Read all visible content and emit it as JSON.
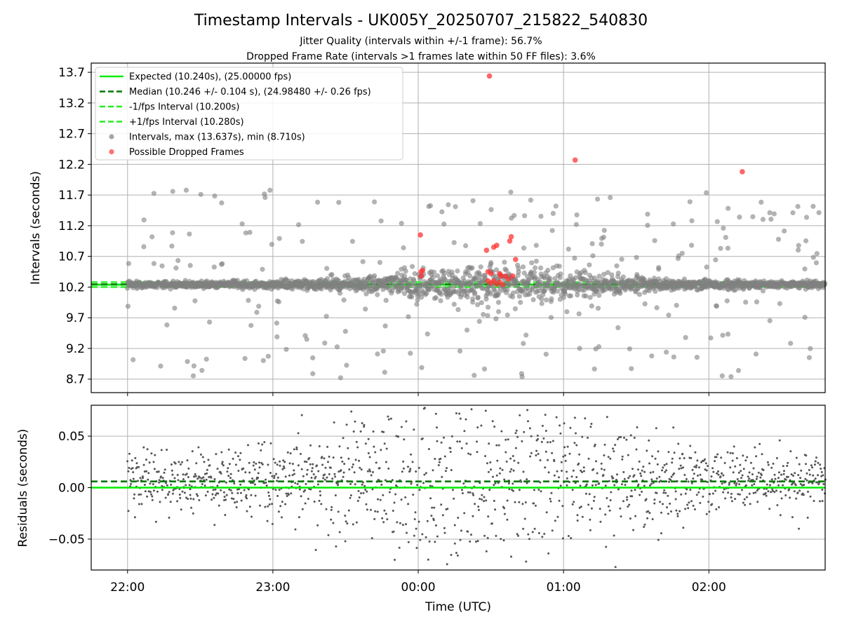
{
  "figure": {
    "title": "Timestamp Intervals - UK005Y_20250707_215822_540830",
    "subtitle_line1": "Jitter Quality (intervals within +/-1 frame): 56.7%",
    "subtitle_line2": "Dropped Frame Rate (intervals >1 frames late within 50 FF files): 3.6%"
  },
  "colors": {
    "expected": "#00ee00",
    "median": "#007700",
    "interval_band": "#22ee22",
    "intervals": "#808080",
    "dropped": "#ff3333",
    "residuals": "#555555",
    "grid": "#b0b0b0"
  },
  "chart_data": [
    {
      "type": "scatter",
      "ylabel": "Intervals (seconds)",
      "ylim": [
        8.48,
        13.85
      ],
      "xlim_hours": [
        21.75,
        26.8
      ],
      "y_ticks": [
        8.7,
        9.2,
        9.7,
        10.2,
        10.7,
        11.2,
        11.7,
        12.2,
        12.7,
        13.2,
        13.7
      ],
      "y_tick_labels": [
        "8.7",
        "9.2",
        "9.7",
        "10.2",
        "10.7",
        "11.2",
        "11.7",
        "12.2",
        "12.7",
        "13.2",
        "13.7"
      ],
      "grid": true,
      "legend_position": "top-left",
      "reference_lines": [
        {
          "name": "Expected (10.240s), (25.00000 fps)",
          "y": 10.24,
          "style": "solid"
        },
        {
          "name": "Median (10.246 +/- 0.104 s), (24.98480 +/- 0.26 fps)",
          "y": 10.246,
          "style": "dashed"
        },
        {
          "name": "-1/fps Interval (10.200s)",
          "y": 10.2,
          "style": "dashed"
        },
        {
          "name": "+1/fps Interval (10.280s)",
          "y": 10.28,
          "style": "dashed"
        }
      ],
      "series": [
        {
          "name": "Intervals, max (13.637s), min (8.710s)",
          "marker": "circle",
          "max": 13.637,
          "min": 8.71
        },
        {
          "name": "Possible Dropped Frames",
          "marker": "circle",
          "points": [
            [
              24.03,
              10.47
            ],
            [
              24.02,
              10.45
            ],
            [
              24.02,
              10.38
            ],
            [
              24.015,
              11.05
            ],
            [
              24.47,
              10.8
            ],
            [
              24.48,
              10.45
            ],
            [
              24.5,
              10.42
            ],
            [
              24.52,
              10.85
            ],
            [
              24.54,
              10.88
            ],
            [
              24.56,
              10.42
            ],
            [
              24.57,
              10.38
            ],
            [
              24.6,
              10.38
            ],
            [
              24.62,
              10.33
            ],
            [
              24.63,
              10.95
            ],
            [
              24.64,
              11.02
            ],
            [
              24.65,
              10.38
            ],
            [
              24.67,
              10.65
            ],
            [
              24.48,
              10.3
            ],
            [
              24.5,
              10.27
            ],
            [
              24.52,
              10.3
            ],
            [
              24.54,
              10.25
            ],
            [
              24.56,
              10.28
            ],
            [
              24.58,
              10.24
            ],
            [
              24.49,
              13.64
            ],
            [
              25.08,
              12.27
            ],
            [
              26.23,
              12.08
            ]
          ]
        }
      ]
    },
    {
      "type": "scatter",
      "ylabel": "Residuals (seconds)",
      "xlabel": "Time (UTC)",
      "ylim": [
        -0.08,
        0.08
      ],
      "xlim_hours": [
        21.75,
        26.8
      ],
      "y_ticks": [
        -0.05,
        0.0,
        0.05
      ],
      "y_tick_labels": [
        "−0.05",
        "0.00",
        "0.05"
      ],
      "x_ticks": [
        22,
        23,
        24,
        25,
        26
      ],
      "x_tick_labels": [
        "22:00",
        "23:00",
        "00:00",
        "01:00",
        "02:00"
      ],
      "grid": true,
      "reference_lines": [
        {
          "y": 0.0,
          "style": "solid"
        },
        {
          "y": 0.006,
          "style": "dashed"
        }
      ]
    }
  ]
}
